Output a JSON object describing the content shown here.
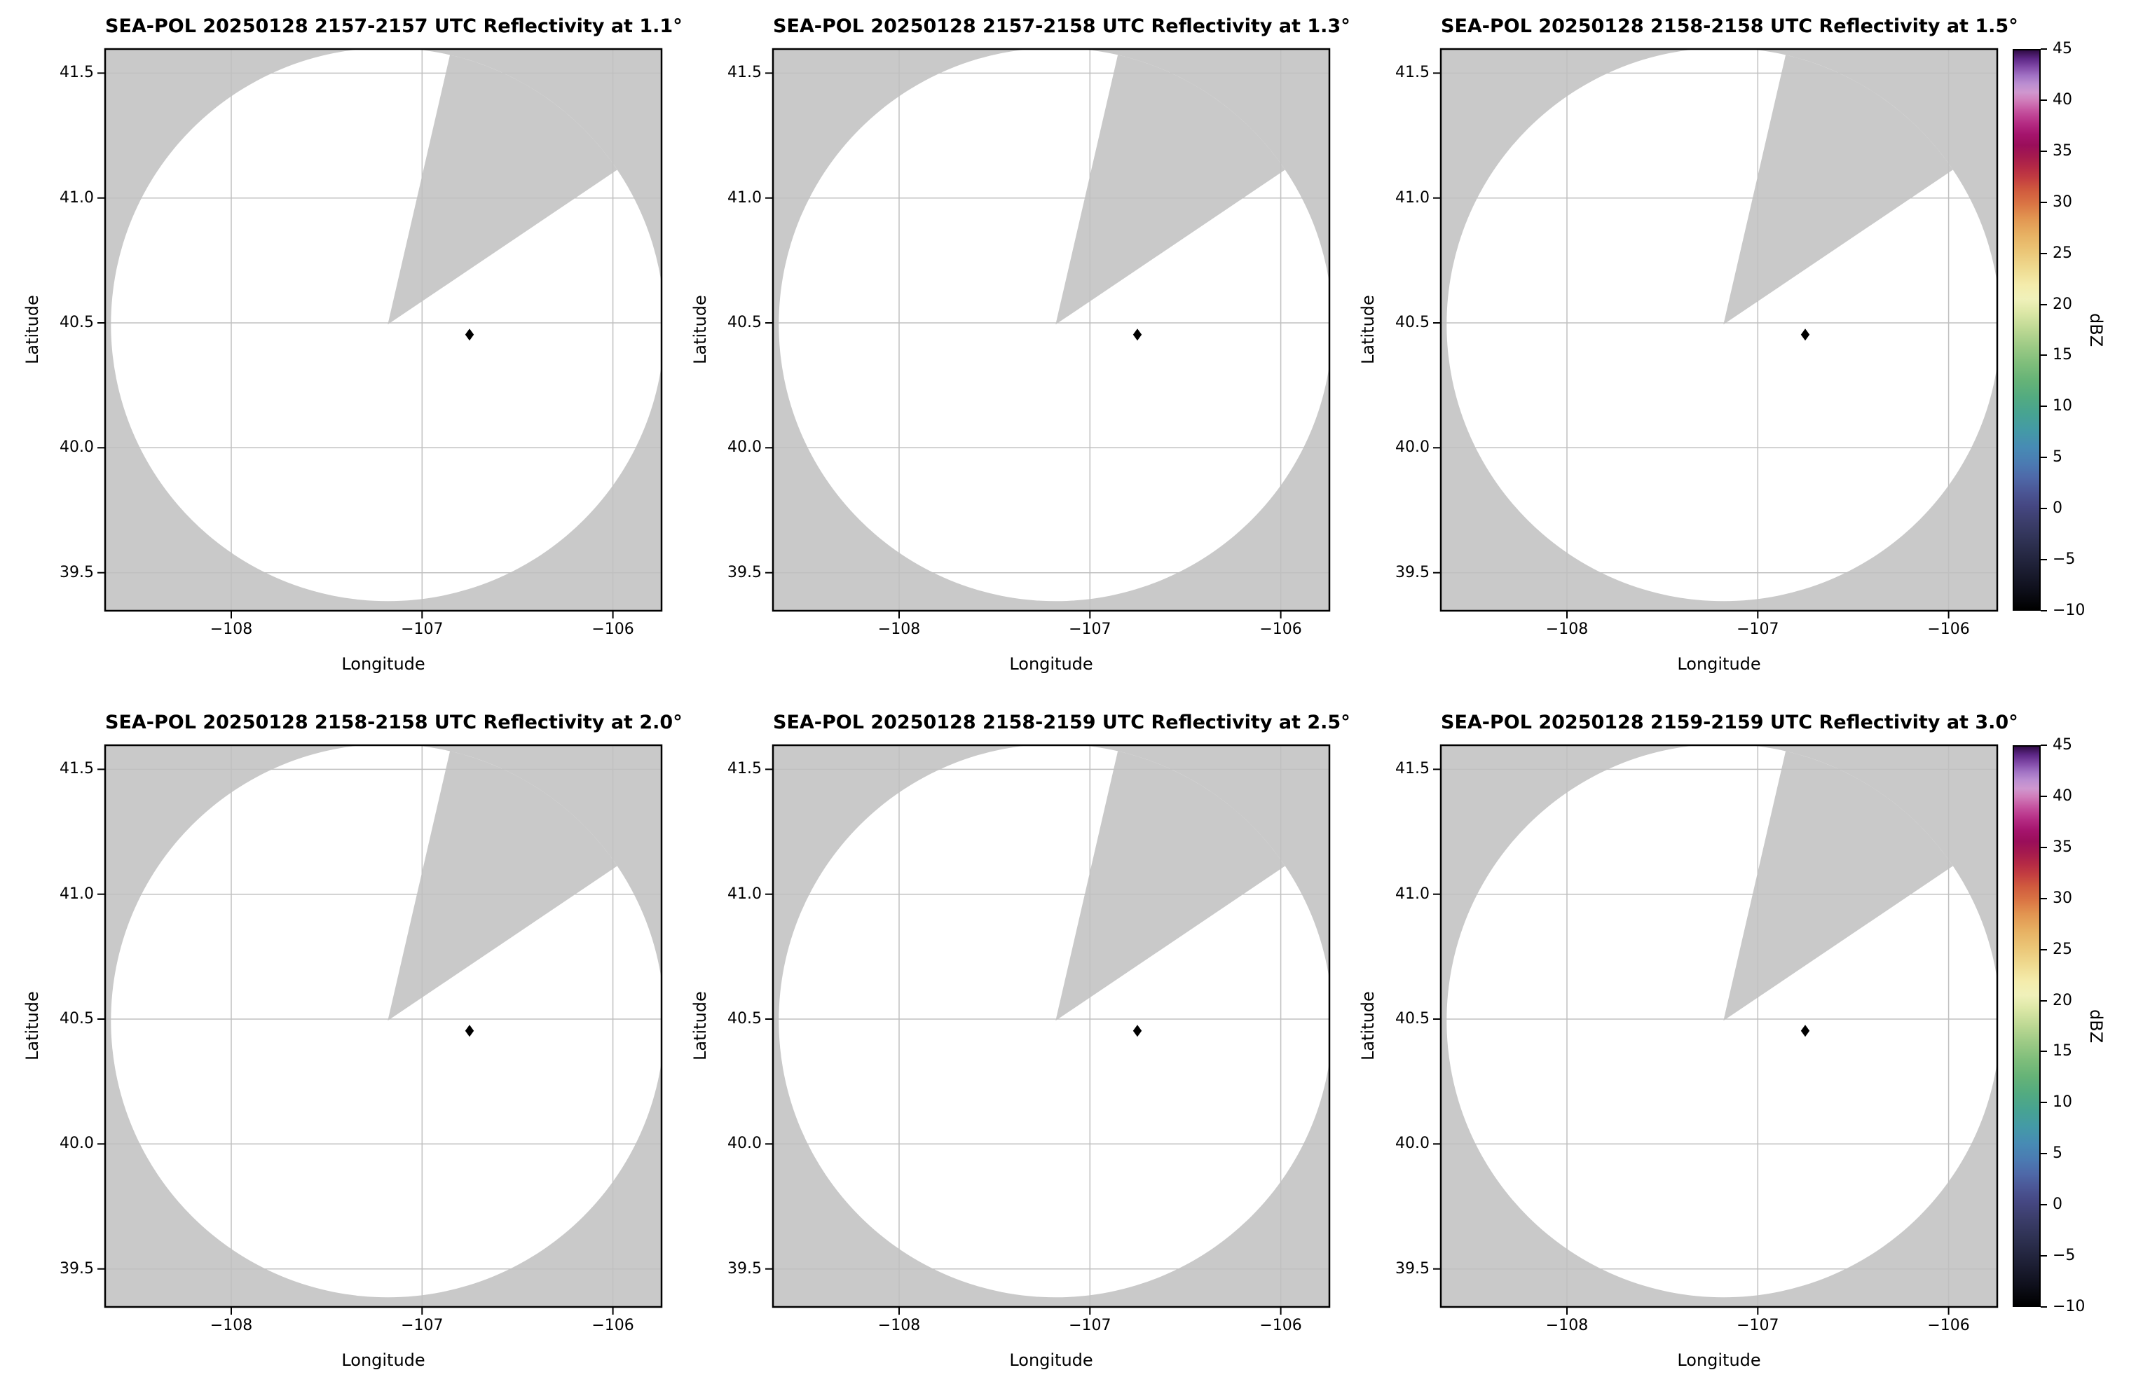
{
  "figure": {
    "colors": {
      "fig-bg": "#ffffff",
      "map-bg": "#c9c9c9",
      "coverage": "#ffffff",
      "grid": "#c0c0c0",
      "ink": "#000000"
    }
  },
  "plots": [
    {
      "title": "SEA-POL 20250128 2157-2157 UTC Reflectivity at 1.1°"
    },
    {
      "title": "SEA-POL 20250128 2157-2158 UTC Reflectivity at 1.3°"
    },
    {
      "title": "SEA-POL 20250128 2158-2158 UTC Reflectivity at 1.5°"
    },
    {
      "title": "SEA-POL 20250128 2158-2158 UTC Reflectivity at 2.0°"
    },
    {
      "title": "SEA-POL 20250128 2158-2159 UTC Reflectivity at 2.5°"
    },
    {
      "title": "SEA-POL 20250128 2159-2159 UTC Reflectivity at 3.0°"
    }
  ],
  "axes": {
    "xlabel": "Longitude",
    "ylabel": "Latitude",
    "xticks": [
      "−108",
      "−107",
      "−106"
    ],
    "yticks": [
      "41.5",
      "41.0",
      "40.5",
      "40.0",
      "39.5"
    ]
  },
  "colorbar": {
    "label": "dBZ",
    "ticks": [
      "45",
      "40",
      "35",
      "30",
      "25",
      "20",
      "15",
      "10",
      "5",
      "0",
      "−5",
      "−10"
    ],
    "gradient_stops": [
      {
        "at": 0.0,
        "color": "#000000"
      },
      {
        "at": 0.04,
        "color": "#10111e"
      },
      {
        "at": 0.08,
        "color": "#1f2138"
      },
      {
        "at": 0.12,
        "color": "#2e3152"
      },
      {
        "at": 0.16,
        "color": "#3d3f6e"
      },
      {
        "at": 0.185,
        "color": "#454782"
      },
      {
        "at": 0.21,
        "color": "#4b5695"
      },
      {
        "at": 0.235,
        "color": "#4e68a8"
      },
      {
        "at": 0.26,
        "color": "#4b7ab2"
      },
      {
        "at": 0.29,
        "color": "#478bb4"
      },
      {
        "at": 0.32,
        "color": "#449aa6"
      },
      {
        "at": 0.35,
        "color": "#47a392"
      },
      {
        "at": 0.38,
        "color": "#53ab80"
      },
      {
        "at": 0.41,
        "color": "#66b377"
      },
      {
        "at": 0.44,
        "color": "#7fbe7b"
      },
      {
        "at": 0.47,
        "color": "#9cca85"
      },
      {
        "at": 0.5,
        "color": "#bcd893"
      },
      {
        "at": 0.53,
        "color": "#dbe7a6"
      },
      {
        "at": 0.555,
        "color": "#f0f1ba"
      },
      {
        "at": 0.58,
        "color": "#f4ecac"
      },
      {
        "at": 0.61,
        "color": "#efda90"
      },
      {
        "at": 0.64,
        "color": "#ebc677"
      },
      {
        "at": 0.67,
        "color": "#e7b163"
      },
      {
        "at": 0.7,
        "color": "#e29551"
      },
      {
        "at": 0.725,
        "color": "#da7544"
      },
      {
        "at": 0.75,
        "color": "#d05a3e"
      },
      {
        "at": 0.77,
        "color": "#c43f40"
      },
      {
        "at": 0.79,
        "color": "#b52a45"
      },
      {
        "at": 0.81,
        "color": "#a51a4e"
      },
      {
        "at": 0.83,
        "color": "#9a0e5a"
      },
      {
        "at": 0.85,
        "color": "#a5146d"
      },
      {
        "at": 0.87,
        "color": "#b52c84"
      },
      {
        "at": 0.89,
        "color": "#c44f9d"
      },
      {
        "at": 0.91,
        "color": "#d07cba"
      },
      {
        "at": 0.925,
        "color": "#cf97cf"
      },
      {
        "at": 0.94,
        "color": "#bb8ed1"
      },
      {
        "at": 0.955,
        "color": "#a172c4"
      },
      {
        "at": 0.97,
        "color": "#824ba9"
      },
      {
        "at": 0.985,
        "color": "#5e2887"
      },
      {
        "at": 1.0,
        "color": "#310c47"
      }
    ]
  },
  "chart_data": {
    "type": "heatmap",
    "figure": "2x3 grid of SEA-POL radar PPI reflectivity maps; one shared colorbar per row; coverage circle blank (no echoes) with a missing-data wedge",
    "panels": [
      {
        "title": "SEA-POL 20250128 2157-2157 UTC Reflectivity at 1.1°",
        "radar": "SEA-POL",
        "date": "20250128",
        "time_utc": "2157-2157",
        "elevation_deg": 1.1
      },
      {
        "title": "SEA-POL 20250128 2157-2158 UTC Reflectivity at 1.3°",
        "radar": "SEA-POL",
        "date": "20250128",
        "time_utc": "2157-2158",
        "elevation_deg": 1.3
      },
      {
        "title": "SEA-POL 20250128 2158-2158 UTC Reflectivity at 1.5°",
        "radar": "SEA-POL",
        "date": "20250128",
        "time_utc": "2158-2158",
        "elevation_deg": 1.5
      },
      {
        "title": "SEA-POL 20250128 2158-2158 UTC Reflectivity at 2.0°",
        "radar": "SEA-POL",
        "date": "20250128",
        "time_utc": "2158-2158",
        "elevation_deg": 2.0
      },
      {
        "title": "SEA-POL 20250128 2158-2159 UTC Reflectivity at 2.5°",
        "radar": "SEA-POL",
        "date": "20250128",
        "time_utc": "2158-2159",
        "elevation_deg": 2.5
      },
      {
        "title": "SEA-POL 20250128 2159-2159 UTC Reflectivity at 3.0°",
        "radar": "SEA-POL",
        "date": "20250128",
        "time_utc": "2159-2159",
        "elevation_deg": 3.0
      }
    ],
    "xlabel": "Longitude",
    "ylabel": "Latitude",
    "xlim": [
      -108.66,
      -105.75
    ],
    "ylim": [
      39.35,
      41.6
    ],
    "xticks": [
      -108,
      -107,
      -106
    ],
    "yticks": [
      39.5,
      40.0,
      40.5,
      41.0,
      41.5
    ],
    "grid": true,
    "legend_position": "colorbar right of each row",
    "colorbar": {
      "label": "dBZ",
      "vmin": -10,
      "vmax": 45,
      "ticks": [
        45,
        40,
        35,
        30,
        25,
        20,
        15,
        10,
        5,
        0,
        -5,
        -10
      ]
    },
    "radar_center_lonlat": [
      -107.18,
      40.49
    ],
    "coverage_radius_deg_lat": 1.11,
    "missing_sector_azimuth_deg": [
      13,
      56
    ],
    "marker_lonlat": [
      -106.75,
      40.45
    ],
    "echoes": "none visible; all bins inside coverage circle are blank/white"
  }
}
